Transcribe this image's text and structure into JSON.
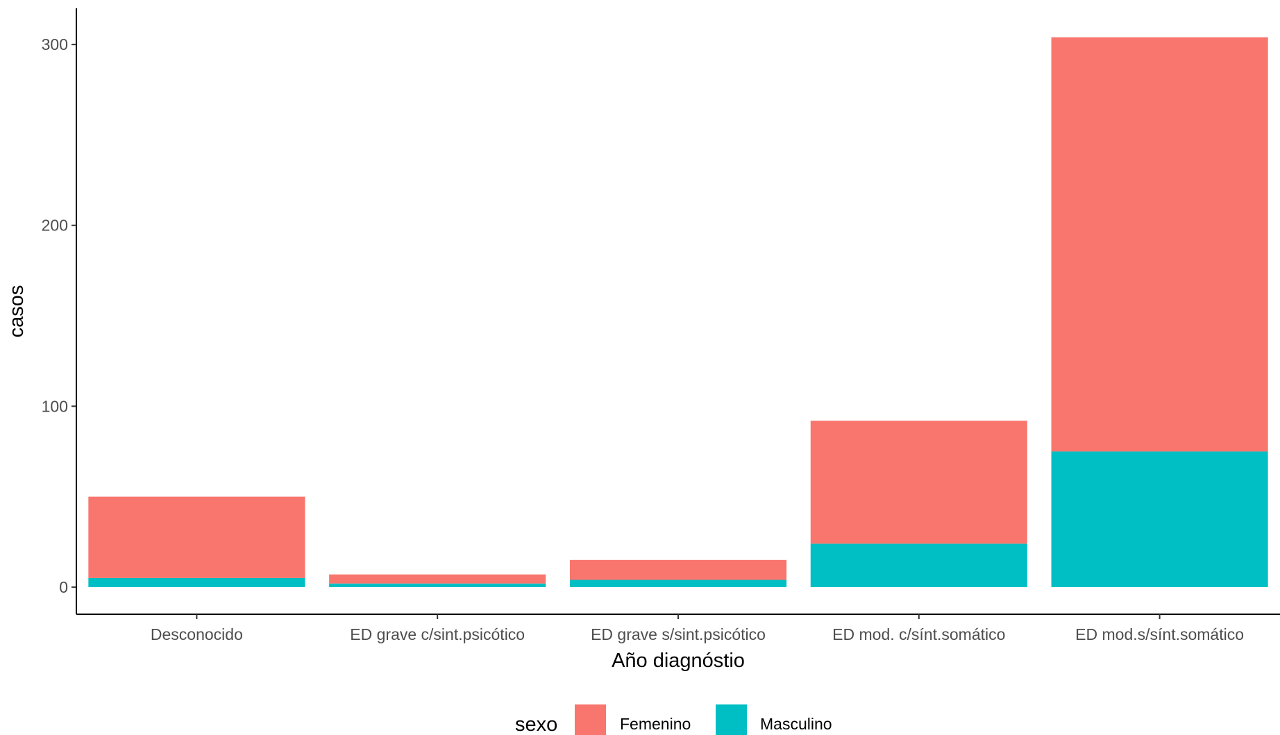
{
  "chart_data": {
    "type": "bar",
    "stacked": true,
    "categories": [
      "Desconocido",
      "ED grave c/sint.psicótico",
      "ED grave s/sint.psicótico",
      "ED mod. c/sínt.somático",
      "ED mod.s/sínt.somático"
    ],
    "series": [
      {
        "name": "Femenino",
        "color": "#F8766D",
        "values": [
          45,
          5,
          11,
          68,
          229
        ]
      },
      {
        "name": "Masculino",
        "color": "#00BFC4",
        "values": [
          5,
          2,
          4,
          24,
          75
        ]
      }
    ],
    "xlabel": "Año diagnóstio",
    "ylabel": "casos",
    "ylim": [
      -15,
      320
    ],
    "yticks": [
      0,
      100,
      200,
      300
    ],
    "grid": false,
    "legend": {
      "title": "sexo",
      "position": "bottom"
    }
  }
}
